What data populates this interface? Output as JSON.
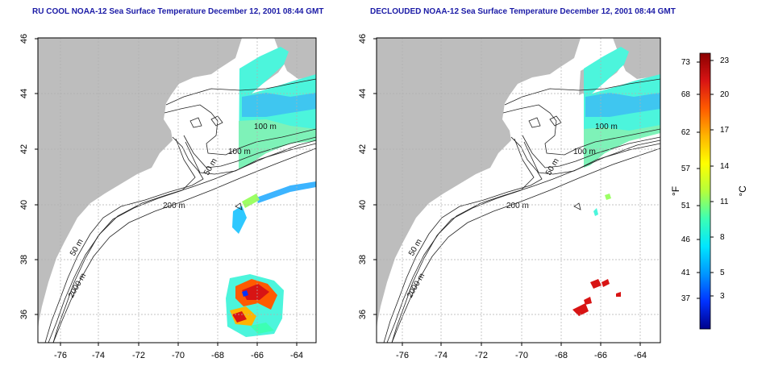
{
  "left_panel": {
    "title": "RU COOL NOAA-12 Sea Surface Temperature December 12, 2001 08:44 GMT",
    "contour_labels": [
      "100 m",
      "100 m",
      "50 m",
      "200 m",
      "50 m",
      "2000 m"
    ]
  },
  "right_panel": {
    "title": "DECLOUDED NOAA-12 Sea Surface Temperature December 12, 2001 08:44 GMT",
    "contour_labels": [
      "100 m",
      "100 m",
      "50 m",
      "200 m",
      "50 m",
      "2000 m"
    ]
  },
  "axes": {
    "x_ticks": [
      "-76",
      "-74",
      "-72",
      "-70",
      "-68",
      "-66",
      "-64"
    ],
    "y_ticks": [
      "36",
      "38",
      "40",
      "42",
      "44",
      "46"
    ]
  },
  "colorbar": {
    "f_label": "°F",
    "c_label": "°C",
    "f_ticks": [
      "73",
      "68",
      "62",
      "57",
      "51",
      "46",
      "41",
      "37"
    ],
    "c_ticks": [
      "23",
      "20",
      "17",
      "14",
      "11",
      "8",
      "5",
      "3"
    ],
    "colors_top_to_bottom": [
      "#8b0000",
      "#d81414",
      "#ff5a00",
      "#ffb400",
      "#ffff00",
      "#b4ff3c",
      "#3cffb4",
      "#00e6ff",
      "#0096ff",
      "#0032ff",
      "#00008b"
    ]
  },
  "colors": {
    "land": "#bdbdbd",
    "ocean": "#ffffff",
    "grid": "#b0b0b0",
    "title": "#1a1aa6",
    "sst_cool": "#4cf5dc",
    "sst_warm": "#d81414"
  }
}
